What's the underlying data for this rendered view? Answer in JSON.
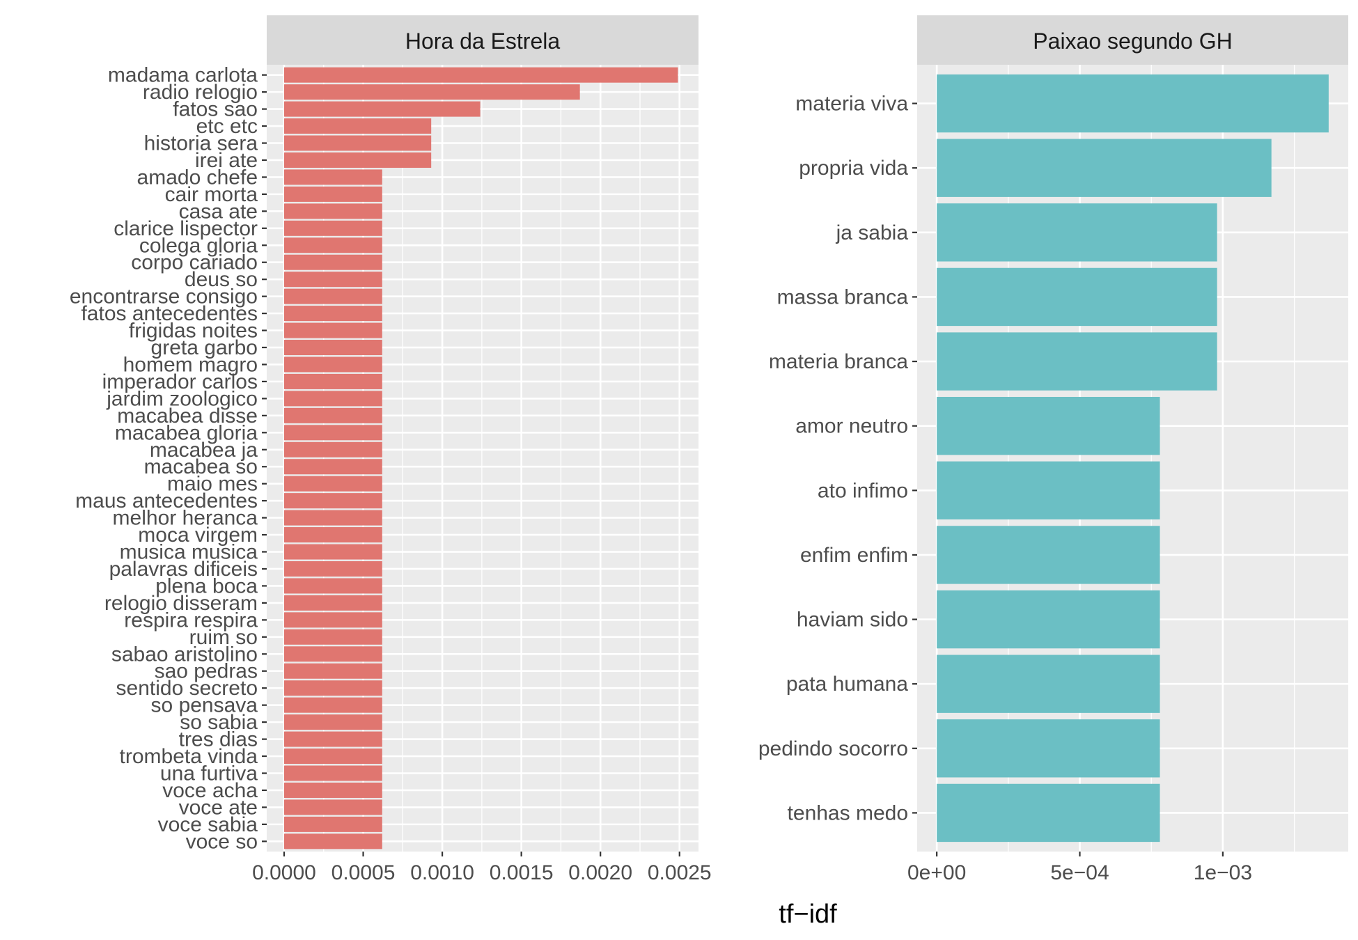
{
  "chart_data": {
    "type": "bar",
    "orientation": "horizontal",
    "xlabel": "tf−idf",
    "ylabel": "",
    "grid": true,
    "legend": "none",
    "colors": {
      "panel_left": "#E07670",
      "panel_right": "#6BBFC4",
      "panel_bg": "#EBEBEB",
      "strip_bg": "#D9D9D9"
    },
    "facets": [
      {
        "title": "Hora da Estrela",
        "color": "#E07670",
        "xlim": [
          -0.00011,
          0.00262
        ],
        "xticks": [
          0,
          0.0005,
          0.001,
          0.0015,
          0.002,
          0.0025
        ],
        "xtick_labels": [
          "0.0000",
          "0.0005",
          "0.0010",
          "0.0015",
          "0.0020",
          "0.0025"
        ],
        "categories": [
          "madama carlota",
          "radio relogio",
          "fatos sao",
          "etc etc",
          "historia sera",
          "irei ate",
          "amado chefe",
          "cair morta",
          "casa ate",
          "clarice lispector",
          "colega gloria",
          "corpo cariado",
          "deus so",
          "encontrarse consigo",
          "fatos antecedentes",
          "frigidas noites",
          "greta garbo",
          "homem magro",
          "imperador carlos",
          "jardim zoologico",
          "macabea disse",
          "macabea gloria",
          "macabea ja",
          "macabea so",
          "maio mes",
          "maus antecedentes",
          "melhor heranca",
          "moca virgem",
          "musica musica",
          "palavras dificeis",
          "plena boca",
          "relogio disseram",
          "respira respira",
          "ruim so",
          "sabao aristolino",
          "sao pedras",
          "sentido secreto",
          "so pensava",
          "so sabia",
          "tres dias",
          "trombeta vinda",
          "una furtiva",
          "voce acha",
          "voce ate",
          "voce sabia",
          "voce so"
        ],
        "values": [
          0.00249,
          0.00187,
          0.00124,
          0.00093,
          0.00093,
          0.00093,
          0.00062,
          0.00062,
          0.00062,
          0.00062,
          0.00062,
          0.00062,
          0.00062,
          0.00062,
          0.00062,
          0.00062,
          0.00062,
          0.00062,
          0.00062,
          0.00062,
          0.00062,
          0.00062,
          0.00062,
          0.00062,
          0.00062,
          0.00062,
          0.00062,
          0.00062,
          0.00062,
          0.00062,
          0.00062,
          0.00062,
          0.00062,
          0.00062,
          0.00062,
          0.00062,
          0.00062,
          0.00062,
          0.00062,
          0.00062,
          0.00062,
          0.00062,
          0.00062,
          0.00062,
          0.00062,
          0.00062
        ]
      },
      {
        "title": "Paixao segundo GH",
        "color": "#6BBFC4",
        "xlim": [
          -6.85e-05,
          0.0014385
        ],
        "xticks": [
          0,
          0.0005,
          0.001
        ],
        "xtick_labels": [
          "0e+00",
          "5e−04",
          "1e−03"
        ],
        "categories": [
          "materia viva",
          "propria vida",
          "ja sabia",
          "massa branca",
          "materia branca",
          "amor neutro",
          "ato infimo",
          "enfim enfim",
          "haviam sido",
          "pata humana",
          "pedindo socorro",
          "tenhas medo"
        ],
        "values": [
          0.00137,
          0.00117,
          0.00098,
          0.00098,
          0.00098,
          0.00078,
          0.00078,
          0.00078,
          0.00078,
          0.00078,
          0.00078,
          0.00078
        ]
      }
    ]
  }
}
